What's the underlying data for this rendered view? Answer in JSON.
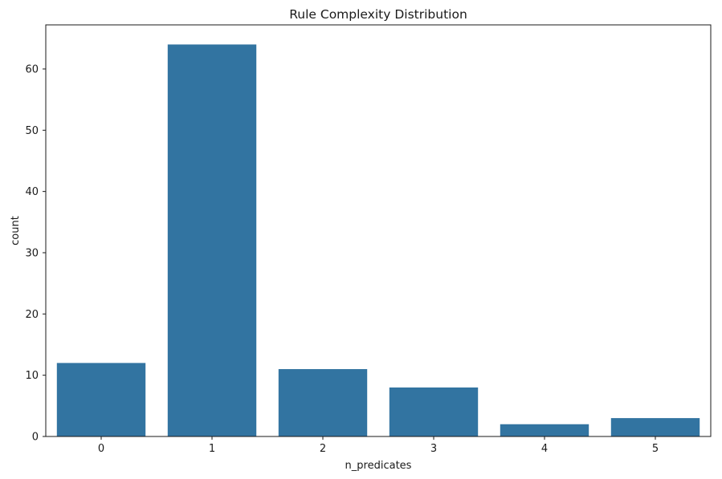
{
  "chart_data": {
    "type": "bar",
    "title": "Rule Complexity Distribution",
    "xlabel": "n_predicates",
    "ylabel": "count",
    "categories": [
      "0",
      "1",
      "2",
      "3",
      "4",
      "5"
    ],
    "values": [
      12,
      64,
      11,
      8,
      2,
      3
    ],
    "ylim": [
      0,
      67.2
    ],
    "yticks": [
      0,
      10,
      20,
      30,
      40,
      50,
      60
    ],
    "bar_color": "#3274a1",
    "grid": false,
    "legend": "none"
  }
}
